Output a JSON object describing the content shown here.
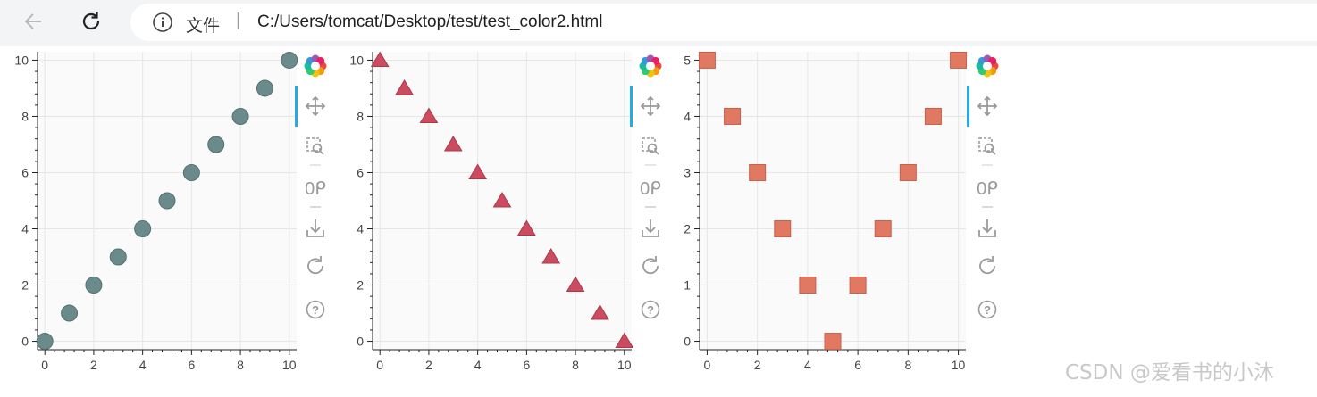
{
  "browser": {
    "back_icon": "arrow-left-icon",
    "reload_icon": "reload-icon",
    "info_icon": "info-icon",
    "address_label": "文件",
    "address_separator": "|",
    "url": "C:/Users/tomcat/Desktop/test/test_color2.html"
  },
  "toolbar": {
    "icons": [
      "bokeh-logo-icon",
      "pan-icon",
      "box-zoom-icon",
      "wheel-zoom-icon",
      "save-icon",
      "reset-icon",
      "help-icon"
    ]
  },
  "watermark": "CSDN @爱看书的小沐",
  "chart_data": [
    {
      "type": "scatter",
      "marker": "circle",
      "color": "#6b8a8c",
      "x": [
        0,
        1,
        2,
        3,
        4,
        5,
        6,
        7,
        8,
        9,
        10
      ],
      "y": [
        0,
        1,
        2,
        3,
        4,
        5,
        6,
        7,
        8,
        9,
        10
      ],
      "xticks": [
        "0",
        "2",
        "4",
        "6",
        "8",
        "10"
      ],
      "yticks": [
        "0",
        "2",
        "4",
        "6",
        "8",
        "10"
      ],
      "xlim": [
        -0.3,
        10.3
      ],
      "ylim": [
        -0.3,
        10.3
      ],
      "grid": true
    },
    {
      "type": "scatter",
      "marker": "triangle",
      "color": "#cc4b5e",
      "x": [
        0,
        1,
        2,
        3,
        4,
        5,
        6,
        7,
        8,
        9,
        10
      ],
      "y": [
        10,
        9,
        8,
        7,
        6,
        5,
        4,
        3,
        2,
        1,
        0
      ],
      "xticks": [
        "0",
        "2",
        "4",
        "6",
        "8",
        "10"
      ],
      "yticks": [
        "0",
        "2",
        "4",
        "6",
        "8",
        "10"
      ],
      "xlim": [
        -0.3,
        10.3
      ],
      "ylim": [
        -0.3,
        10.3
      ],
      "grid": true
    },
    {
      "type": "scatter",
      "marker": "square",
      "color": "#e07862",
      "x": [
        0,
        1,
        2,
        3,
        4,
        5,
        6,
        7,
        8,
        9,
        10
      ],
      "y": [
        5,
        4,
        3,
        2,
        1,
        0,
        1,
        2,
        3,
        4,
        5
      ],
      "xticks": [
        "0",
        "2",
        "4",
        "6",
        "8",
        "10"
      ],
      "yticks": [
        "0",
        "1",
        "2",
        "3",
        "4",
        "5"
      ],
      "xlim": [
        -0.3,
        10.3
      ],
      "ylim": [
        -0.15,
        5.15
      ],
      "grid": true
    }
  ]
}
